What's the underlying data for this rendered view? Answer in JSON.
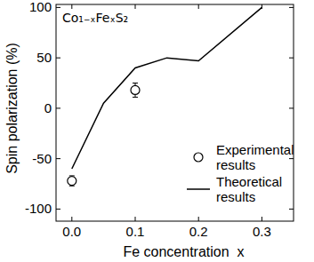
{
  "chart_data": {
    "type": "line",
    "title": "Co₁₋ₓFeₓS₂",
    "x_label": "Fe concentration  x",
    "y_label": "Spin polarization (%)",
    "xlim": [
      -0.025,
      0.35
    ],
    "ylim": [
      -112,
      103
    ],
    "xticks": [
      {
        "value": 0,
        "label": "0.0"
      },
      {
        "value": 0.1,
        "label": "0.1"
      },
      {
        "value": 0.2,
        "label": "0.2"
      },
      {
        "value": 0.3,
        "label": "0.3"
      }
    ],
    "yticks": [
      -100,
      -50,
      0,
      50,
      100
    ],
    "legend": "lower right",
    "series": [
      {
        "name": "Experimental results",
        "type": "scatter",
        "marker": "circle",
        "color": "#000000",
        "x": [
          0,
          0.1
        ],
        "values": [
          -72,
          18
        ],
        "errors": [
          5,
          7
        ]
      },
      {
        "name": "Theoretical results",
        "type": "line",
        "line_style": "solid",
        "color": "#000000",
        "x": [
          0,
          0.05,
          0.1,
          0.15,
          0.2,
          0.3
        ],
        "values": [
          -60,
          5,
          40,
          50,
          47,
          100
        ]
      }
    ]
  }
}
